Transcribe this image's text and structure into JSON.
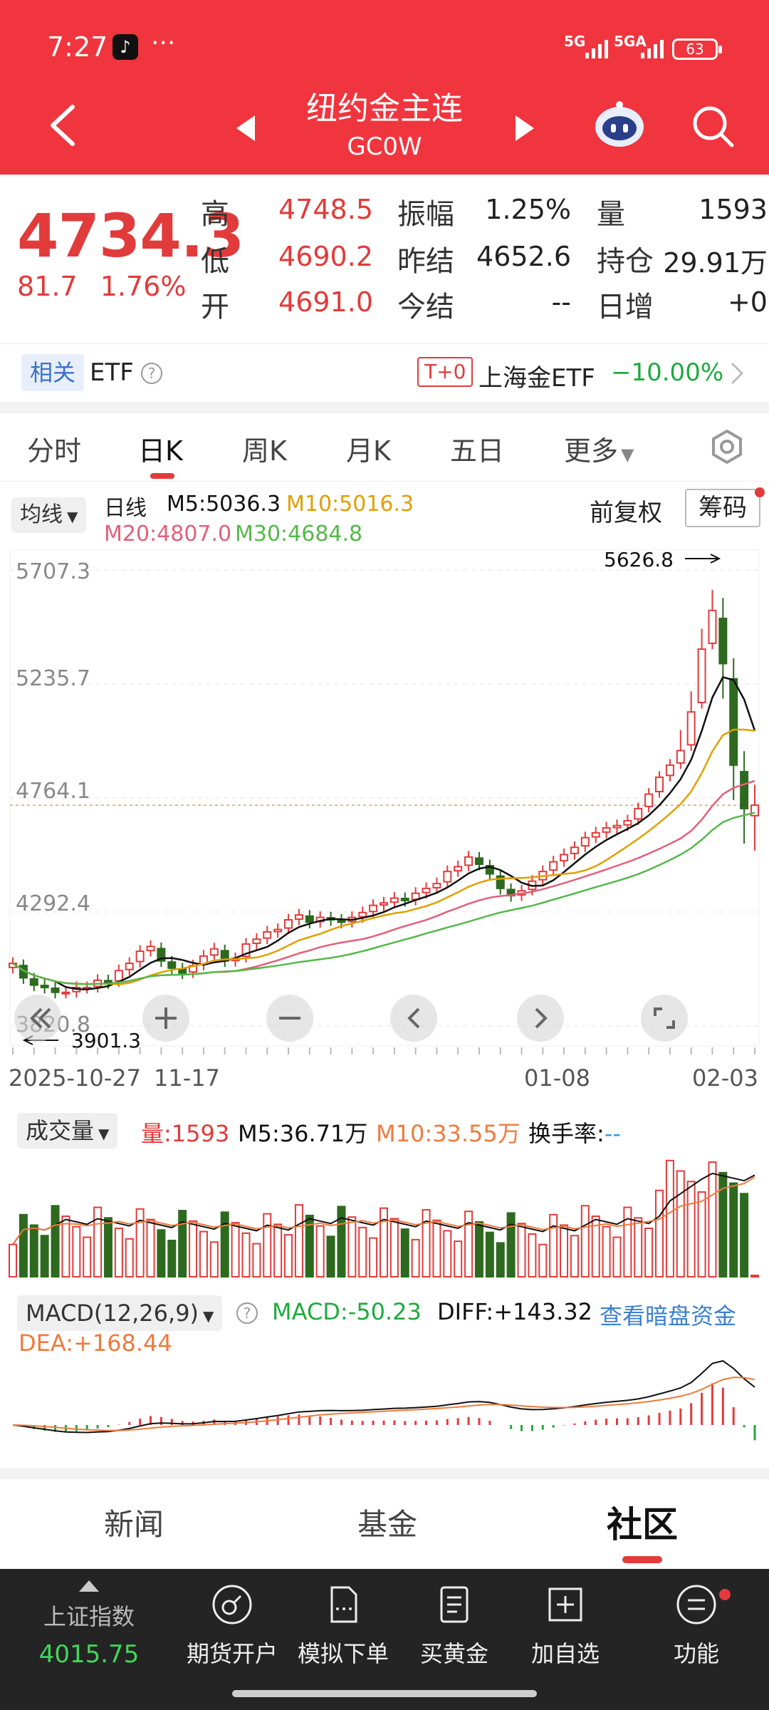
{
  "status": {
    "time": "7:27",
    "tiktok": "♪",
    "dots": "···",
    "net1": "5G",
    "net2": "5GA",
    "battery": "63"
  },
  "header": {
    "title": "纽约金主连",
    "subtitle": "GC0W"
  },
  "quote": {
    "price": "4734.3",
    "change": "81.7",
    "change_pct": "1.76%",
    "labels": {
      "high": "高",
      "low": "低",
      "open": "开",
      "amplitude": "振幅",
      "prev_settle": "昨结",
      "today_settle": "今结",
      "volume": "量",
      "open_interest": "持仓",
      "daily_inc": "日增"
    },
    "high": "4748.5",
    "low": "4690.2",
    "open": "4691.0",
    "amplitude": "1.25%",
    "prev_settle": "4652.6",
    "today_settle": "--",
    "volume": "1593",
    "open_interest": "29.91万",
    "daily_inc": "+0"
  },
  "etf": {
    "tag": "相关",
    "label": "ETF",
    "help": "?",
    "t0": "T+0",
    "name": "上海金ETF",
    "pct": "−10.00%"
  },
  "tabs": [
    "分时",
    "日K",
    "周K",
    "月K",
    "五日",
    "更多"
  ],
  "kline": {
    "indicator": "均线",
    "type_label": "日线",
    "m5": "M5:5036.3",
    "m10": "M10:5016.3",
    "m20": "M20:4807.0",
    "m30": "M30:4684.8",
    "adjust": "前复权",
    "chips": "筹码",
    "y_labels": [
      "5707.3",
      "5235.7",
      "4764.1",
      "4292.4",
      "3820.8"
    ],
    "high_mark": "5626.8",
    "low_mark": "3901.3",
    "x_labels": [
      "2025-10-27",
      "11-17",
      "01-08",
      "02-03"
    ]
  },
  "volume": {
    "indicator": "成交量",
    "vol": "量:1593",
    "m5": "M5:36.71万",
    "m10": "M10:33.55万",
    "turnover_label": "换手率:",
    "turnover": "--"
  },
  "macd": {
    "indicator": "MACD(12,26,9)",
    "macd": "MACD:-50.23",
    "diff": "DIFF:+143.32",
    "link": "查看暗盘资金",
    "dea": "DEA:+168.44"
  },
  "bottom_tabs": [
    "新闻",
    "基金",
    "社区"
  ],
  "nav": {
    "index_name": "上证指数",
    "index_value": "4015.75",
    "items": [
      "期货开户",
      "模拟下单",
      "买黄金",
      "加自选",
      "功能"
    ]
  },
  "colors": {
    "up": "#e23b3b",
    "down": "#2d6a1f",
    "m5": "#111111",
    "m10": "#e0a000",
    "m20": "#e2607a",
    "m30": "#55b84a",
    "header": "#f0353e"
  },
  "chart_data": {
    "type": "candlestick",
    "title": "",
    "ylim": [
      3820.8,
      5707.3
    ],
    "y_ticks": [
      5707.3,
      5235.7,
      4764.1,
      4292.4,
      3820.8
    ],
    "x_ticks": [
      "2025-10-27",
      "11-17",
      "01-08",
      "02-03"
    ],
    "closes": [
      4080,
      4020,
      3990,
      3980,
      3960,
      3960,
      3980,
      3980,
      4010,
      4000,
      4050,
      4080,
      4130,
      4150,
      4090,
      4060,
      4040,
      4070,
      4110,
      4140,
      4090,
      4100,
      4160,
      4180,
      4210,
      4220,
      4260,
      4280,
      4250,
      4270,
      4260,
      4250,
      4270,
      4290,
      4320,
      4330,
      4350,
      4340,
      4370,
      4390,
      4410,
      4460,
      4480,
      4520,
      4490,
      4450,
      4390,
      4360,
      4380,
      4420,
      4460,
      4500,
      4530,
      4560,
      4600,
      4620,
      4640,
      4650,
      4670,
      4720,
      4780,
      4850,
      4900,
      4960,
      5120,
      5380,
      5540,
      5320,
      4900,
      4720,
      4734.3
    ],
    "series": [
      {
        "name": "M5",
        "value": 5036.3
      },
      {
        "name": "M10",
        "value": 5016.3
      },
      {
        "name": "M20",
        "value": 4807.0
      },
      {
        "name": "M30",
        "value": 4684.8
      }
    ],
    "annotations": {
      "high": 5626.8,
      "low": 3901.3,
      "last": 4734.3
    }
  }
}
